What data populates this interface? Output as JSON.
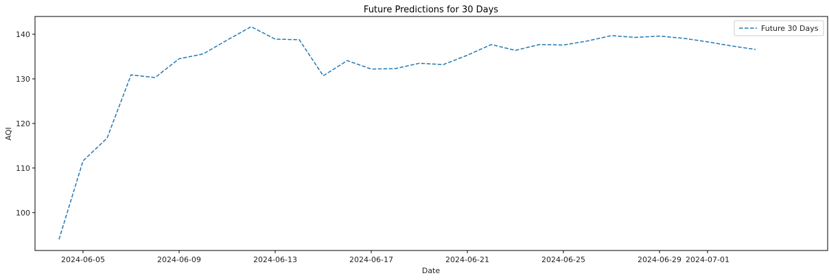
{
  "chart_data": {
    "type": "line",
    "title": "Future Predictions for 30 Days",
    "xlabel": "Date",
    "ylabel": "AQI",
    "x_ticks": [
      "2024-06-05",
      "2024-06-09",
      "2024-06-13",
      "2024-06-17",
      "2024-06-21",
      "2024-06-25",
      "2024-06-29",
      "2024-07-01"
    ],
    "y_ticks": [
      100,
      110,
      120,
      130,
      140
    ],
    "xlim": [
      "2024-06-03",
      "2024-07-06"
    ],
    "ylim": [
      91.5,
      144
    ],
    "grid": false,
    "legend_position": "top-right",
    "series": [
      {
        "name": "Future 30 Days",
        "color": "#1f77b4",
        "line_style": "dashed",
        "x": [
          "2024-06-04",
          "2024-06-05",
          "2024-06-06",
          "2024-06-07",
          "2024-06-08",
          "2024-06-09",
          "2024-06-10",
          "2024-06-11",
          "2024-06-12",
          "2024-06-13",
          "2024-06-14",
          "2024-06-15",
          "2024-06-16",
          "2024-06-17",
          "2024-06-18",
          "2024-06-19",
          "2024-06-20",
          "2024-06-21",
          "2024-06-22",
          "2024-06-23",
          "2024-06-24",
          "2024-06-25",
          "2024-06-26",
          "2024-06-27",
          "2024-06-28",
          "2024-06-29",
          "2024-06-30",
          "2024-07-01",
          "2024-07-02",
          "2024-07-03"
        ],
        "values": [
          94.0,
          111.6,
          116.7,
          130.9,
          130.3,
          134.5,
          135.6,
          138.7,
          141.7,
          138.9,
          138.8,
          130.7,
          134.1,
          132.2,
          132.3,
          133.5,
          133.2,
          135.3,
          137.7,
          136.4,
          137.7,
          137.6,
          138.5,
          139.7,
          139.3,
          139.6,
          139.1,
          138.3,
          137.4,
          136.6
        ]
      }
    ]
  }
}
